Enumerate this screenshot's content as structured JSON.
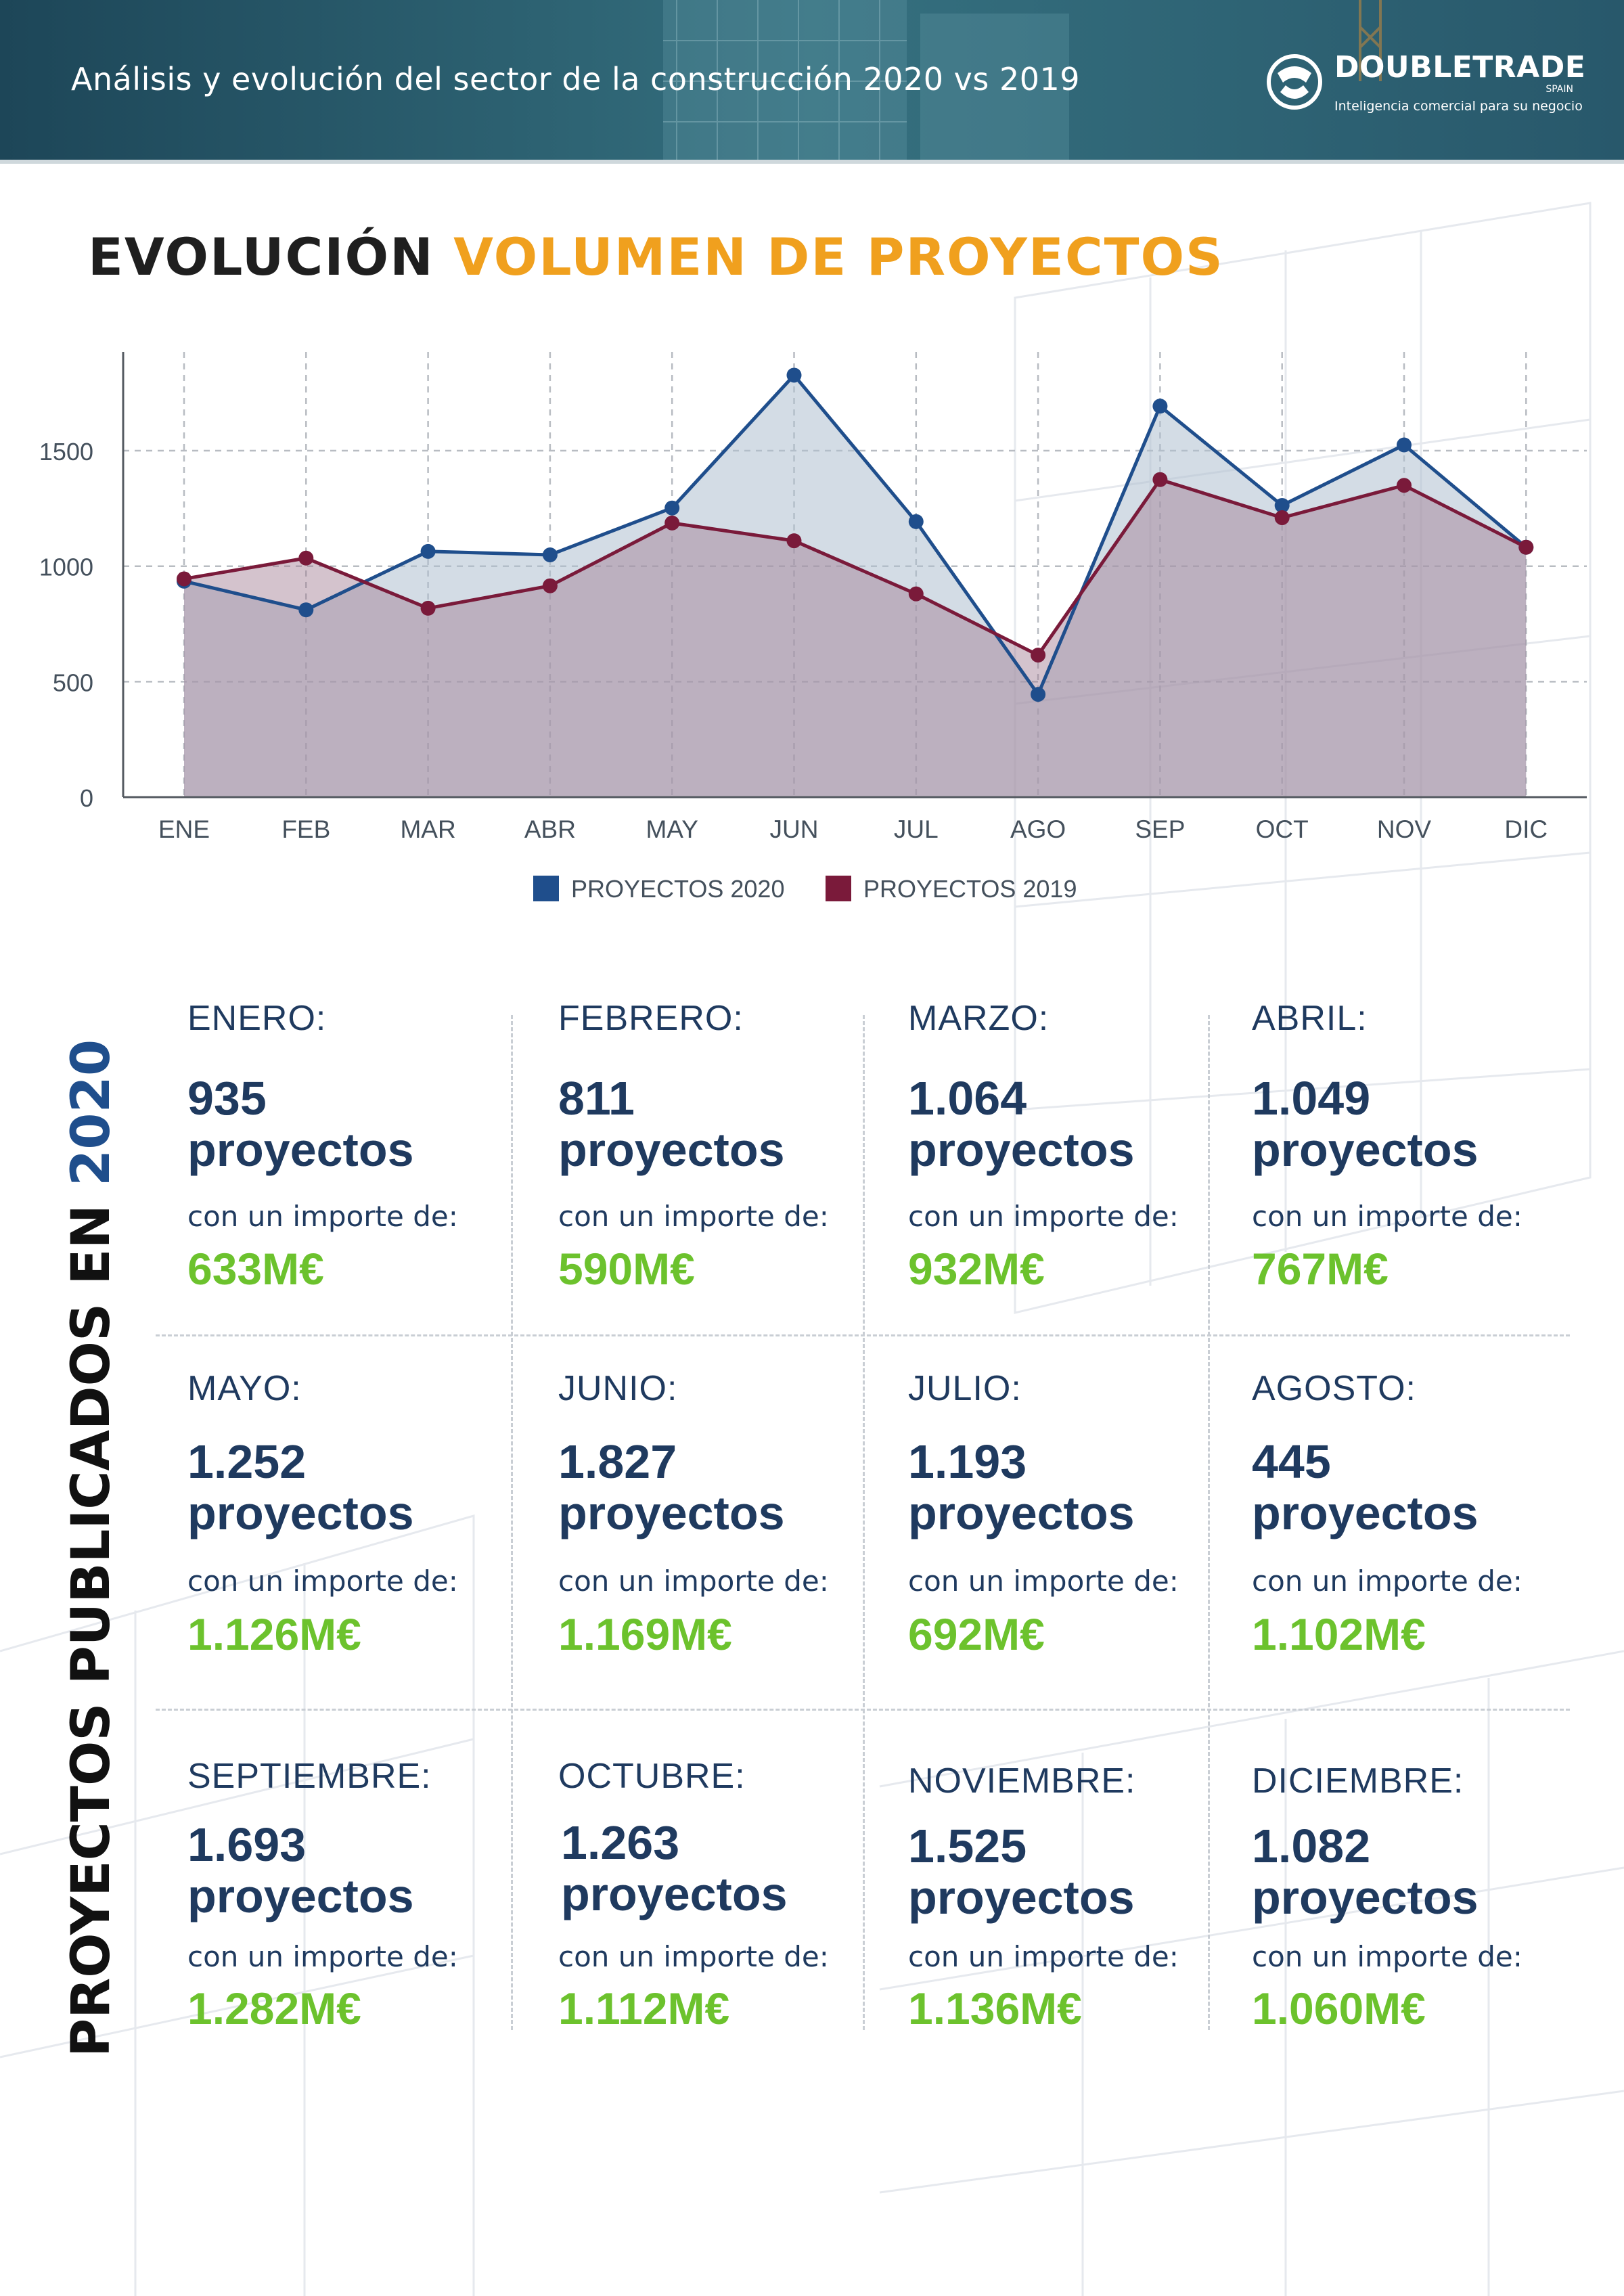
{
  "header": {
    "title": "Análisis y evolución del sector de la construcción 2020 vs 2019",
    "logo_name": "DOUBLETRADE",
    "logo_country": "SPAIN",
    "logo_tagline": "Inteligencia comercial para  su negocio"
  },
  "section_title": {
    "part1": "EVOLUCIÓN",
    "part2": "VOLUMEN DE PROYECTOS"
  },
  "colors": {
    "series_2020": "#1f4e8c",
    "series_2019": "#7a1a3a",
    "accent_orange": "#f0a01e",
    "amount_green": "#6cc22d"
  },
  "chart_data": {
    "type": "area",
    "categories": [
      "ENE",
      "FEB",
      "MAR",
      "ABR",
      "MAY",
      "JUN",
      "JUL",
      "AGO",
      "SEP",
      "OCT",
      "NOV",
      "DIC"
    ],
    "series": [
      {
        "name": "PROYECTOS 2020",
        "values": [
          935,
          811,
          1064,
          1049,
          1252,
          1827,
          1193,
          445,
          1693,
          1263,
          1525,
          1082
        ]
      },
      {
        "name": "PROYECTOS 2019",
        "values": [
          945,
          1035,
          818,
          915,
          1187,
          1110,
          880,
          615,
          1375,
          1210,
          1350,
          1082
        ]
      }
    ],
    "ylim": [
      0,
      1900
    ],
    "yticks": [
      0,
      500,
      1000,
      1500
    ],
    "grid": true,
    "legend_position": "bottom-center"
  },
  "side_title": {
    "part1": "PROYECTOS PUBLICADOS EN",
    "part2": "2020"
  },
  "months": [
    {
      "name": "ENERO:",
      "count": "935",
      "unit": "proyectos",
      "sub": "con un importe de:",
      "amount": "633M€"
    },
    {
      "name": "FEBRERO:",
      "count": "811",
      "unit": "proyectos",
      "sub": "con un importe de:",
      "amount": "590M€"
    },
    {
      "name": "MARZO:",
      "count": "1.064",
      "unit": "proyectos",
      "sub": "con un importe de:",
      "amount": "932M€"
    },
    {
      "name": "ABRIL:",
      "count": "1.049",
      "unit": "proyectos",
      "sub": "con un importe de:",
      "amount": "767M€"
    },
    {
      "name": "MAYO:",
      "count": "1.252",
      "unit": "proyectos",
      "sub": "con un importe de:",
      "amount": "1.126M€"
    },
    {
      "name": "JUNIO:",
      "count": "1.827",
      "unit": "proyectos",
      "sub": "con un importe de:",
      "amount": "1.169M€"
    },
    {
      "name": "JULIO:",
      "count": "1.193",
      "unit": "proyectos",
      "sub": "con un importe de:",
      "amount": "692M€"
    },
    {
      "name": "AGOSTO:",
      "count": "445",
      "unit": "proyectos",
      "sub": "con un importe de:",
      "amount": "1.102M€"
    },
    {
      "name": "SEPTIEMBRE:",
      "count": "1.693",
      "unit": "proyectos",
      "sub": "con un importe de:",
      "amount": "1.282M€"
    },
    {
      "name": "OCTUBRE:",
      "count": "1.263",
      "unit": "proyectos",
      "sub": "con un importe de:",
      "amount": "1.112M€"
    },
    {
      "name": "NOVIEMBRE:",
      "count": "1.525",
      "unit": "proyectos",
      "sub": "con un importe de:",
      "amount": "1.136M€"
    },
    {
      "name": "DICIEMBRE:",
      "count": "1.082",
      "unit": "proyectos",
      "sub": "con un importe de:",
      "amount": "1.060M€"
    }
  ]
}
